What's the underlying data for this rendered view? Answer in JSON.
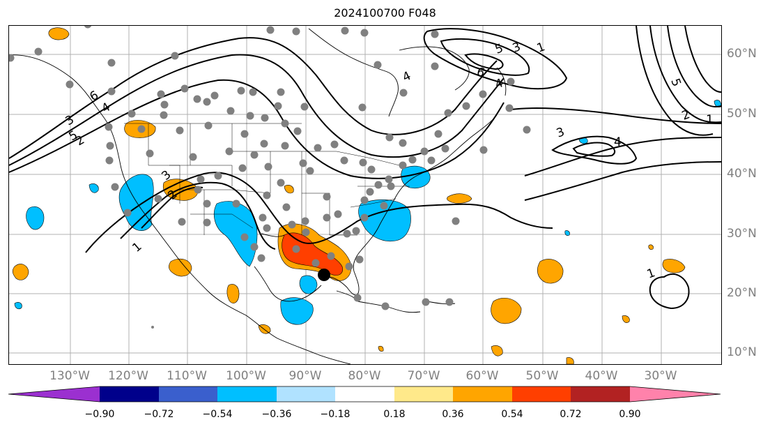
{
  "title": "2024100700 F048",
  "latitude_labels": [
    "60°N",
    "50°N",
    "40°N",
    "30°N",
    "20°N",
    "10°N"
  ],
  "longitude_labels": [
    "130°W",
    "120°W",
    "110°W",
    "100°W",
    "90°W",
    "80°W",
    "70°W",
    "60°W",
    "50°W",
    "40°W",
    "30°W"
  ],
  "contour_labels": [
    "1",
    "2",
    "3",
    "4",
    "5",
    "6",
    "4",
    "3",
    "2",
    "1",
    "6",
    "5",
    "4",
    "3",
    "2",
    "1",
    "4",
    "3",
    "5",
    "1"
  ],
  "colorbar": {
    "ticks": [
      "−0.90",
      "−0.72",
      "−0.54",
      "−0.36",
      "−0.18",
      "0.18",
      "0.36",
      "0.54",
      "0.72",
      "0.90"
    ],
    "colors": [
      "#9b30d0",
      "#00008b",
      "#3a5fcd",
      "#00bfff",
      "#b0e2ff",
      "#ffffff",
      "#ffe98a",
      "#ffa500",
      "#ff3f00",
      "#b22222",
      "#ff82ab"
    ]
  },
  "colors": {
    "positive_moderate": "#ffa500",
    "positive_strong": "#ff3f00",
    "negative_moderate": "#00bfff",
    "station_dot": "#808080",
    "storm_center": "#000000"
  }
}
